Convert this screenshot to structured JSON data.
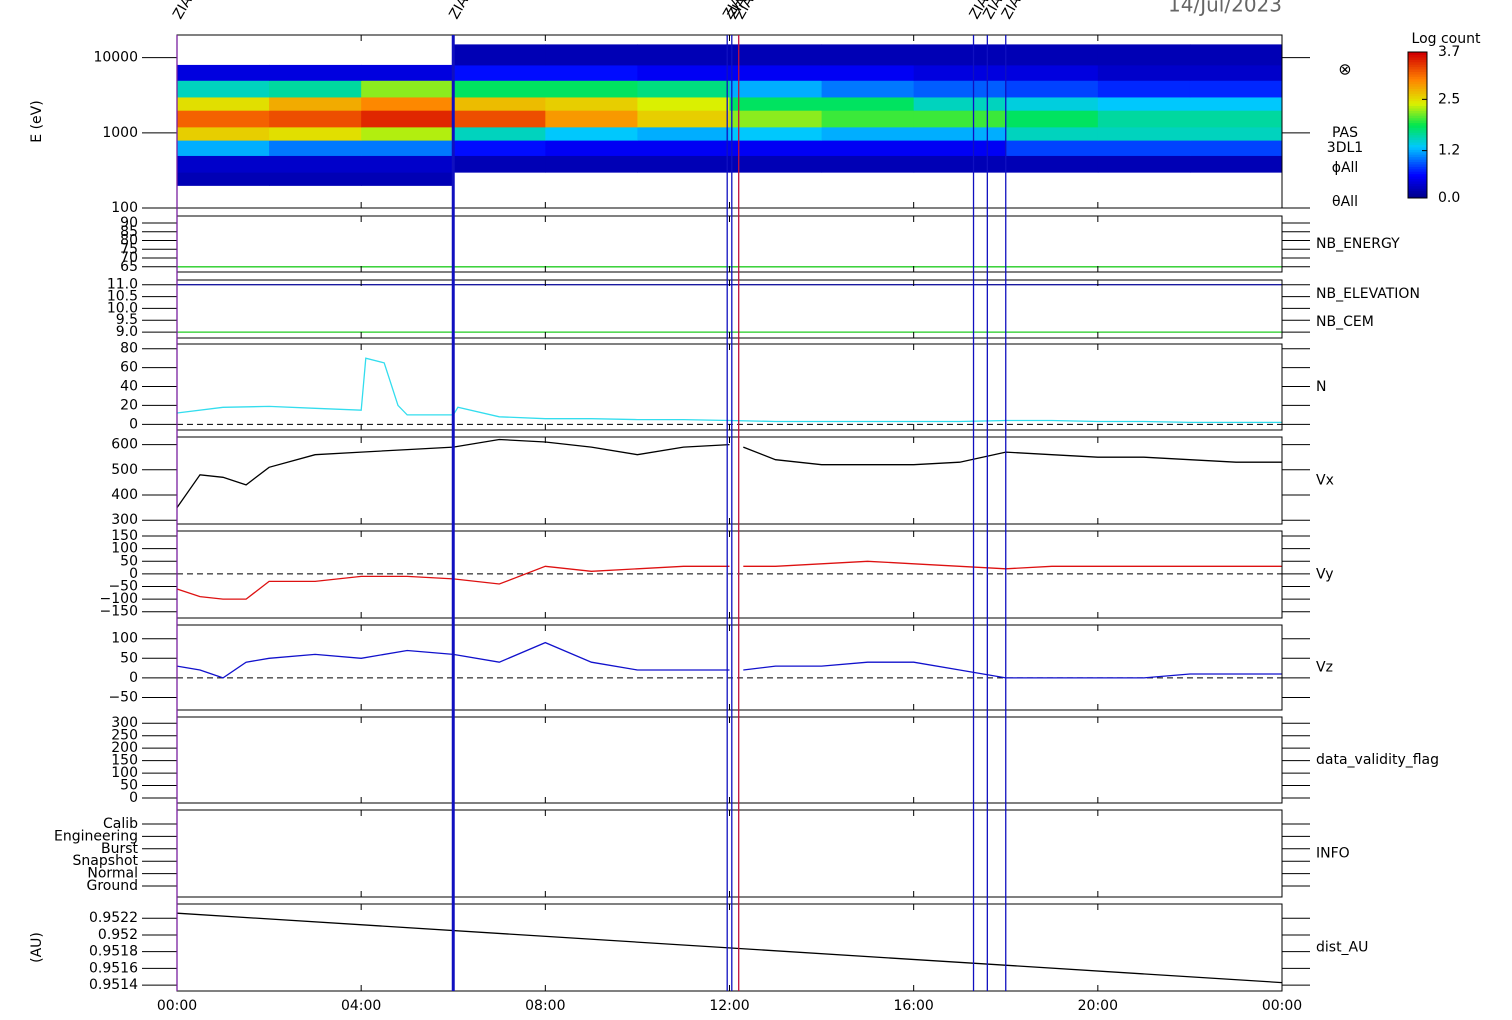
{
  "date": "14/Jul/2023",
  "xaxis": {
    "xlim": [
      0,
      24
    ],
    "xticks": [
      {
        "value": 0,
        "label": "00:00"
      },
      {
        "value": 4,
        "label": "04:00"
      },
      {
        "value": 8,
        "label": "08:00"
      },
      {
        "value": 12,
        "label": "12:00"
      },
      {
        "value": 16,
        "label": "16:00"
      },
      {
        "value": 20,
        "label": "20:00"
      },
      {
        "value": 24,
        "label": "00:00"
      }
    ]
  },
  "events": [
    {
      "x": 0.0,
      "color": "#7a1fa0",
      "label": "ZIAS"
    },
    {
      "x": 6.0,
      "color": "#1010c0",
      "label": "ZIAS"
    },
    {
      "x": 11.95,
      "color": "#1010c0",
      "label": "ZIAS"
    },
    {
      "x": 12.05,
      "color": "#1010c0",
      "label": "ZIAS"
    },
    {
      "x": 12.2,
      "color": "#c01040",
      "label": "ZIAS"
    },
    {
      "x": 17.3,
      "color": "#1010c0",
      "label": "ZIAS"
    },
    {
      "x": 17.6,
      "color": "#1010c0",
      "label": "ZIAS"
    },
    {
      "x": 18.0,
      "color": "#1010c0",
      "label": "ZIAS"
    }
  ],
  "chart_data": [
    {
      "type": "spectrogram",
      "ylabel": "E (eV)",
      "labels": [
        "PAS",
        "3DL1",
        "ϕAll",
        "θAll"
      ],
      "log_y": true,
      "ylim": [
        100,
        20000
      ],
      "yticks": [
        100,
        1000,
        10000
      ],
      "x_edges": [
        0,
        2,
        4,
        6,
        8,
        10,
        12,
        14,
        16,
        18,
        20,
        22,
        24
      ],
      "y_edges": [
        200,
        300,
        500,
        800,
        1200,
        2000,
        3000,
        5000,
        8000,
        15000
      ],
      "values": [
        [
          0.2,
          0.2,
          0.2,
          null,
          null,
          null,
          null,
          null,
          null,
          null,
          null,
          null
        ],
        [
          0.3,
          0.3,
          0.3,
          0.2,
          0.2,
          0.2,
          0.2,
          0.2,
          0.2,
          0.2,
          0.2,
          0.2
        ],
        [
          1.2,
          1.0,
          1.0,
          0.6,
          0.5,
          0.5,
          0.5,
          0.5,
          0.5,
          0.8,
          0.8,
          0.8
        ],
        [
          2.6,
          2.5,
          2.3,
          1.5,
          1.3,
          1.2,
          1.3,
          1.2,
          1.2,
          1.5,
          1.5,
          1.5
        ],
        [
          3.2,
          3.3,
          3.5,
          3.3,
          2.9,
          2.6,
          2.2,
          2.0,
          2.0,
          1.8,
          1.6,
          1.6
        ],
        [
          2.5,
          2.8,
          3.0,
          2.7,
          2.6,
          2.4,
          1.8,
          1.8,
          1.5,
          1.4,
          1.3,
          1.3
        ],
        [
          1.5,
          1.6,
          2.2,
          1.8,
          1.8,
          1.7,
          1.2,
          1.0,
          0.9,
          0.8,
          0.7,
          0.7
        ],
        [
          0.4,
          0.4,
          0.4,
          0.6,
          0.6,
          0.5,
          0.5,
          0.5,
          0.4,
          0.4,
          0.3,
          0.3
        ],
        [
          null,
          null,
          null,
          0.2,
          0.2,
          0.2,
          0.2,
          0.2,
          0.2,
          0.2,
          0.2,
          0.2
        ]
      ],
      "colorbar": {
        "title": "Log count",
        "lim": [
          0,
          3.7
        ],
        "ticks": [
          {
            "value": 0,
            "label": "0.0"
          },
          1.2,
          2.5,
          3.7
        ]
      }
    },
    {
      "type": "line",
      "ylim": [
        62,
        94
      ],
      "yticks": [
        65,
        70,
        75,
        80,
        85,
        90
      ],
      "x": [
        0,
        24
      ],
      "series": [
        {
          "name": "NB_ENERGY",
          "color": "#22cc22",
          "values": [
            65,
            65
          ]
        }
      ]
    },
    {
      "type": "line",
      "ylim": [
        8.75,
        11.2
      ],
      "yticks": [
        {
          "value": 9,
          "label": "9.0"
        },
        9.5,
        {
          "value": 10,
          "label": "10.0"
        },
        10.5,
        {
          "value": 11,
          "label": "11.0"
        }
      ],
      "x": [
        0,
        24
      ],
      "series": [
        {
          "name": "NB_ELEVATION",
          "color": "#22cc22",
          "values": [
            9,
            9
          ]
        },
        {
          "name": "NB_CEM",
          "color": "#1a1aa0",
          "values": [
            11,
            11
          ]
        }
      ]
    },
    {
      "type": "line",
      "ylim": [
        -6,
        85
      ],
      "yticks": [
        0,
        20,
        40,
        60,
        80
      ],
      "zero_line": true,
      "x": [
        0,
        1,
        2,
        3,
        4,
        4.1,
        4.5,
        4.8,
        5,
        6,
        6.1,
        7,
        8,
        9,
        10,
        11,
        12,
        13,
        14,
        15,
        16,
        17,
        18,
        19,
        20,
        21,
        22,
        23,
        24
      ],
      "series": [
        {
          "name": "N",
          "color": "#33ddee",
          "values": [
            12,
            18,
            19,
            17,
            15,
            70,
            65,
            20,
            10,
            10,
            18,
            8,
            6,
            6,
            5,
            5,
            4,
            3,
            3,
            3,
            3,
            3,
            4,
            4,
            3,
            3,
            2,
            2,
            2
          ]
        }
      ]
    },
    {
      "type": "line",
      "ylim": [
        285,
        630
      ],
      "yticks": [
        300,
        400,
        500,
        600
      ],
      "x": [
        0,
        0.5,
        1,
        1.5,
        2,
        3,
        4,
        5,
        6,
        7,
        8,
        9,
        10,
        11,
        12,
        12.1,
        12.3,
        13,
        14,
        15,
        16,
        17,
        18,
        19,
        20,
        21,
        22,
        23,
        24
      ],
      "series": [
        {
          "name": "Vx",
          "color": "#000000",
          "values": [
            350,
            480,
            470,
            440,
            510,
            560,
            570,
            580,
            590,
            620,
            610,
            590,
            560,
            590,
            600,
            null,
            590,
            540,
            520,
            520,
            520,
            530,
            570,
            560,
            550,
            550,
            540,
            530,
            530
          ]
        }
      ]
    },
    {
      "type": "line",
      "ylim": [
        -175,
        170
      ],
      "zero_line": true,
      "yticks": [
        {
          "value": -150,
          "label": "−150"
        },
        {
          "value": -100,
          "label": "−100"
        },
        {
          "value": -50,
          "label": "−50"
        },
        0,
        50,
        100,
        150
      ],
      "x": [
        0,
        0.5,
        1,
        1.5,
        2,
        3,
        4,
        5,
        6,
        7,
        8,
        9,
        10,
        11,
        12,
        12.1,
        12.3,
        13,
        14,
        15,
        16,
        17,
        18,
        19,
        20,
        21,
        22,
        23,
        24
      ],
      "series": [
        {
          "name": "Vy",
          "color": "#dd1111",
          "values": [
            -60,
            -90,
            -100,
            -100,
            -30,
            -30,
            -10,
            -10,
            -20,
            -40,
            30,
            10,
            20,
            30,
            30,
            null,
            30,
            30,
            40,
            50,
            40,
            30,
            20,
            30,
            30,
            30,
            30,
            30,
            30
          ]
        }
      ]
    },
    {
      "type": "line",
      "ylim": [
        -82,
        135
      ],
      "zero_line": true,
      "yticks": [
        {
          "value": -50,
          "label": "−50"
        },
        0,
        50,
        100
      ],
      "x": [
        0,
        0.5,
        1,
        1.5,
        2,
        3,
        4,
        5,
        6,
        7,
        8,
        9,
        10,
        11,
        12,
        12.1,
        12.3,
        13,
        14,
        15,
        16,
        17,
        18,
        19,
        20,
        21,
        22,
        23,
        24
      ],
      "series": [
        {
          "name": "Vz",
          "color": "#1111cc",
          "values": [
            30,
            20,
            0,
            40,
            50,
            60,
            50,
            70,
            60,
            40,
            90,
            40,
            20,
            20,
            20,
            null,
            20,
            30,
            30,
            40,
            40,
            20,
            0,
            0,
            0,
            0,
            10,
            10,
            10
          ]
        }
      ]
    },
    {
      "type": "line",
      "ylim": [
        -20,
        325
      ],
      "yticks": [
        0,
        50,
        100,
        150,
        200,
        250,
        300
      ],
      "x": [],
      "series": [
        {
          "name": "data_validity_flag",
          "color": "#000000",
          "values": []
        }
      ]
    },
    {
      "type": "categorical",
      "label": "INFO",
      "categories": [
        "Calib",
        "Engineering",
        "Burst",
        "Snapshot",
        "Normal",
        "Ground"
      ]
    },
    {
      "type": "line",
      "ylabel": "(AU)",
      "ylim": [
        0.95133,
        0.95237
      ],
      "yticks": [
        0.9514,
        0.9516,
        0.9518,
        0.952,
        0.9522
      ],
      "x": [
        0,
        24
      ],
      "series": [
        {
          "name": "dist_AU",
          "color": "#000000",
          "values": [
            0.95226,
            0.95143
          ]
        }
      ]
    }
  ]
}
